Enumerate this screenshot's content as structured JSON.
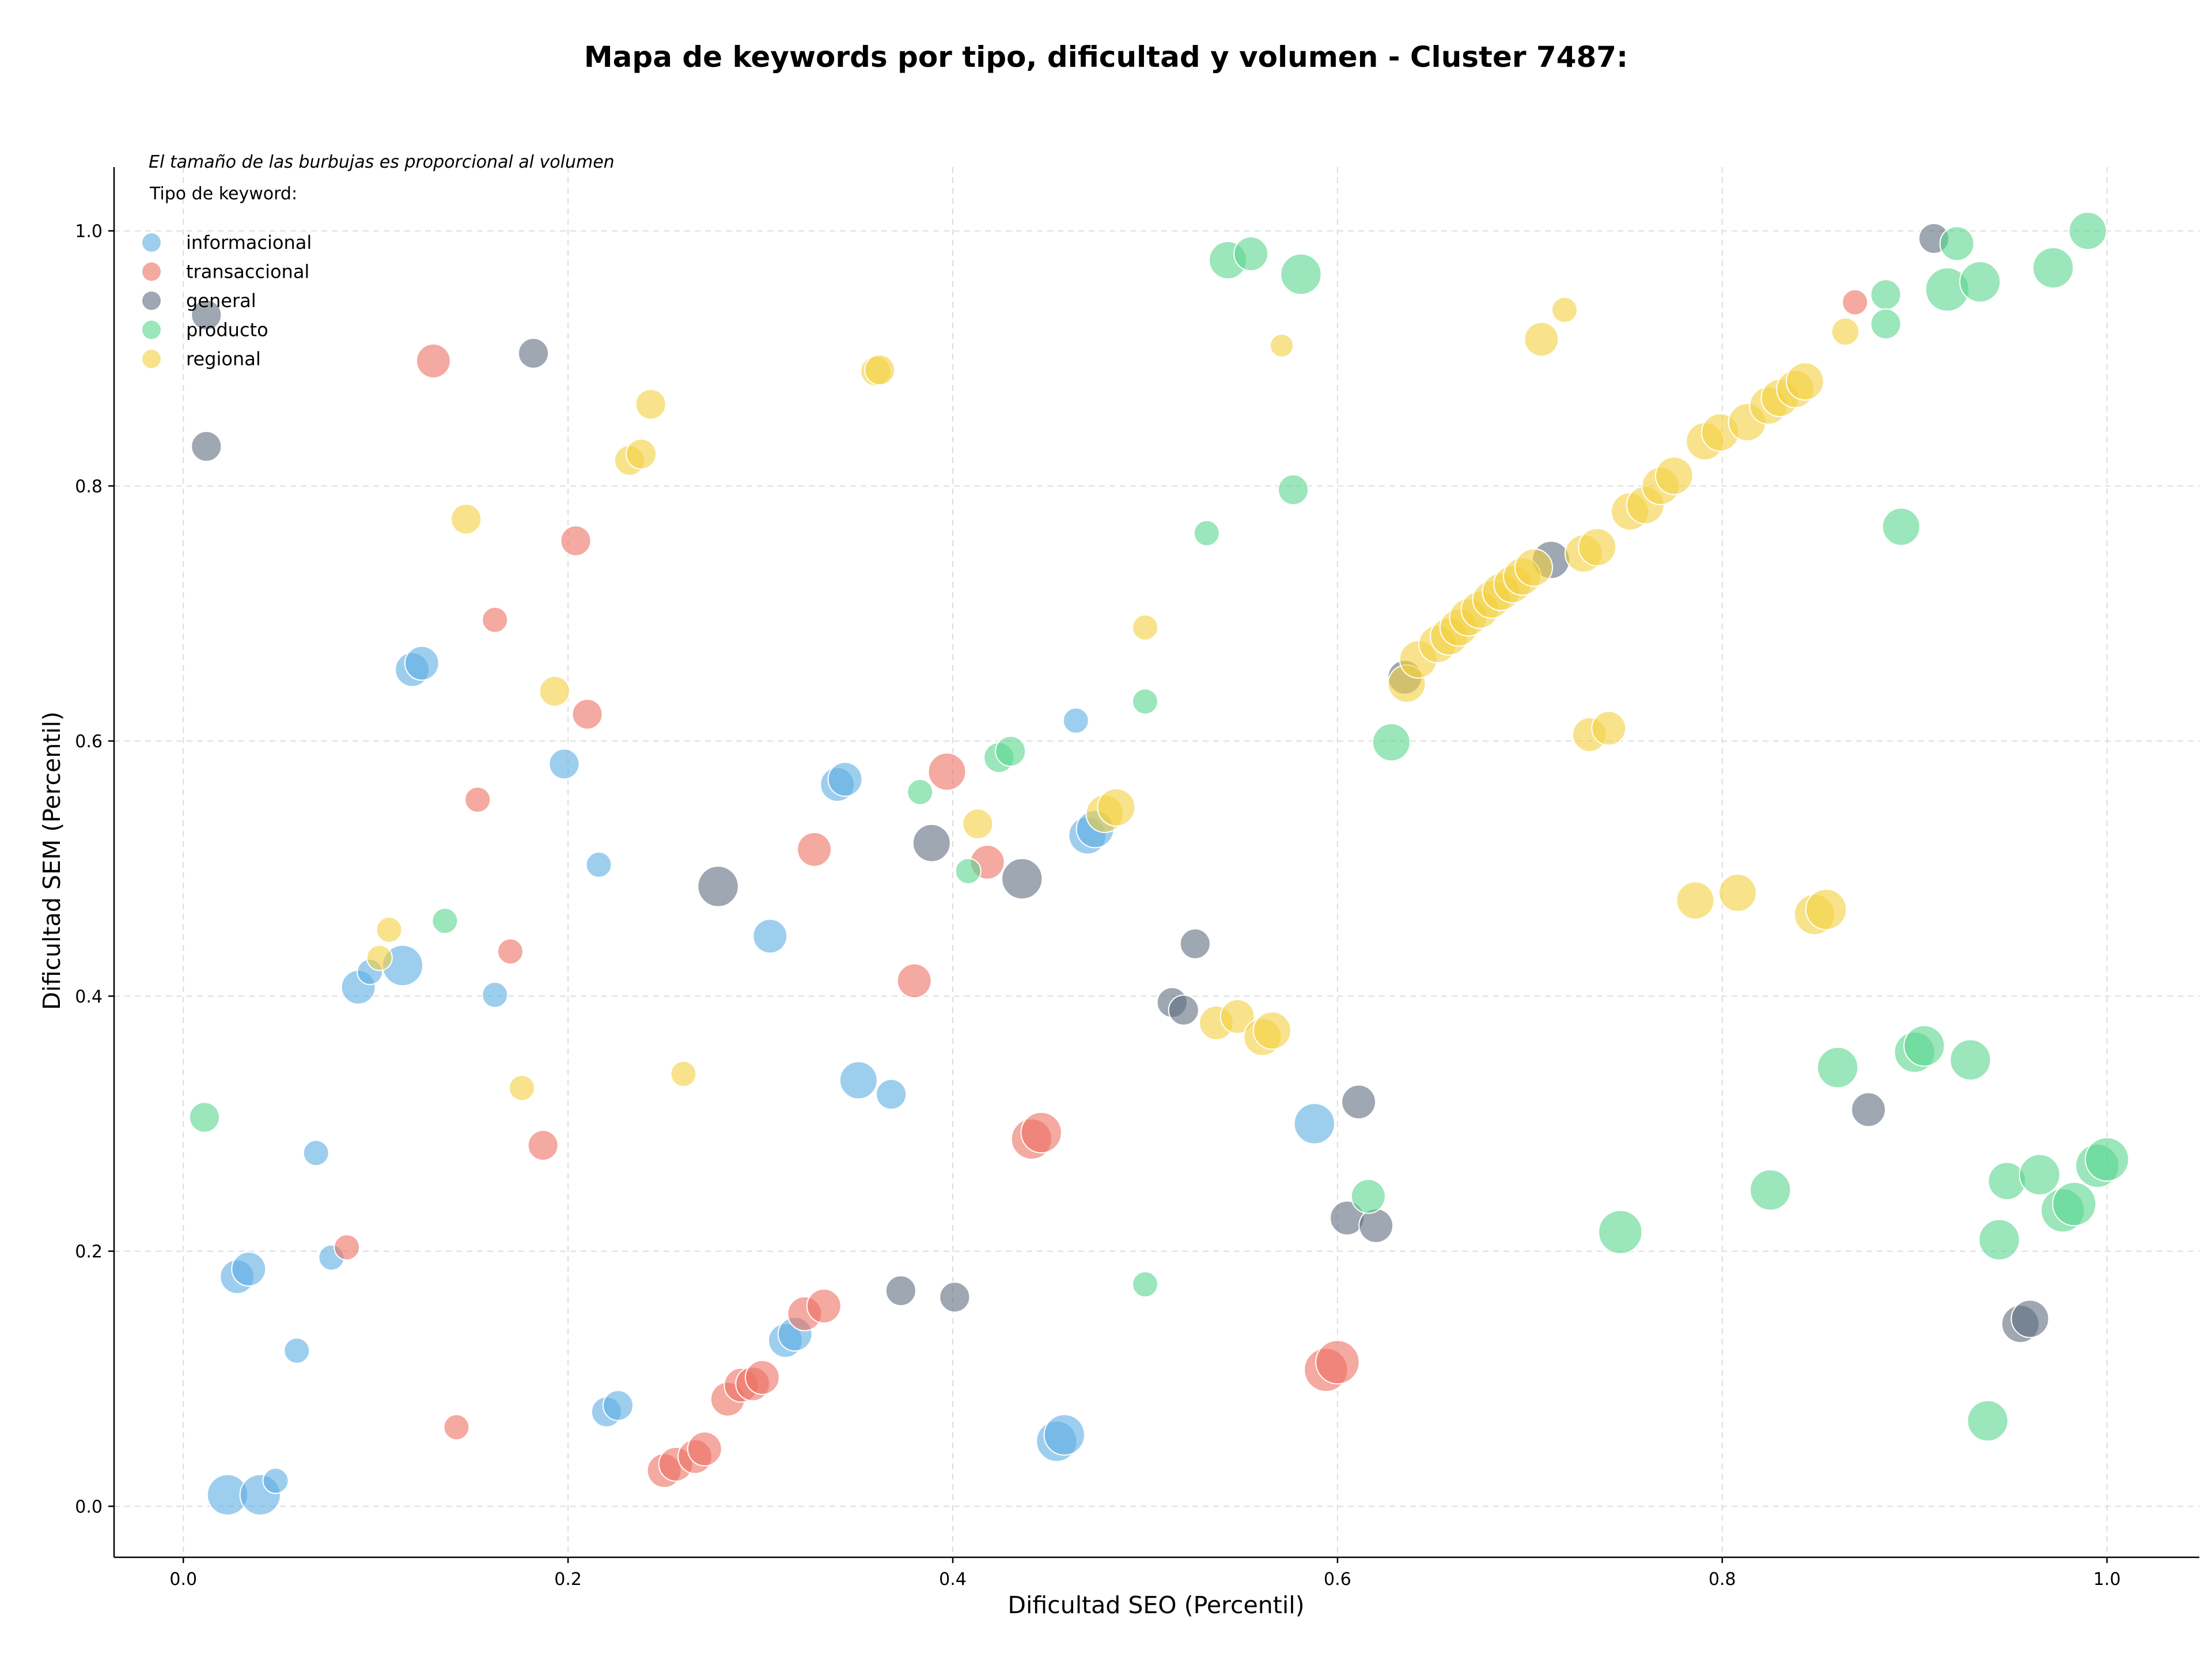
{
  "chart_data": {
    "type": "scatter",
    "title": "Mapa de keywords por tipo, dificultad y volumen - Cluster 7487:",
    "xlabel": "Dificultad SEO (Percentil)",
    "ylabel": "Dificultad SEM (Percentil)",
    "xlim": [
      -0.036,
      1.048
    ],
    "ylim": [
      -0.04,
      1.05
    ],
    "xticks": [
      "0.0",
      "0.2",
      "0.4",
      "0.6",
      "0.8",
      "1.0"
    ],
    "yticks": [
      "0.0",
      "0.2",
      "0.4",
      "0.6",
      "0.8",
      "1.0"
    ],
    "grid": true,
    "legend_position": "top-left",
    "annotation": "El tamaño de las burbujas es proporcional al volumen",
    "legend_title": "Tipo de keyword:",
    "series": [
      {
        "name": "informacional",
        "color": "#5DADE2",
        "points": [
          [
            0.023,
            0.009,
            3
          ],
          [
            0.04,
            0.009,
            3
          ],
          [
            0.048,
            0.02,
            1
          ],
          [
            0.028,
            0.18,
            2
          ],
          [
            0.034,
            0.186,
            2
          ],
          [
            0.059,
            0.122,
            1
          ],
          [
            0.069,
            0.277,
            1
          ],
          [
            0.077,
            0.195,
            1
          ],
          [
            0.091,
            0.407,
            2
          ],
          [
            0.097,
            0.419,
            1
          ],
          [
            0.114,
            0.424,
            3
          ],
          [
            0.119,
            0.656,
            2
          ],
          [
            0.124,
            0.661,
            2
          ],
          [
            0.162,
            0.401,
            1
          ],
          [
            0.198,
            0.582,
            1.5
          ],
          [
            0.216,
            0.503,
            1
          ],
          [
            0.22,
            0.074,
            1.5
          ],
          [
            0.226,
            0.079,
            1.5
          ],
          [
            0.305,
            0.447,
            2
          ],
          [
            0.313,
            0.13,
            2
          ],
          [
            0.318,
            0.135,
            2
          ],
          [
            0.34,
            0.566,
            2
          ],
          [
            0.344,
            0.57,
            2
          ],
          [
            0.351,
            0.334,
            2.5
          ],
          [
            0.368,
            0.323,
            1.5
          ],
          [
            0.454,
            0.051,
            3
          ],
          [
            0.458,
            0.056,
            3
          ],
          [
            0.464,
            0.616,
            1
          ],
          [
            0.47,
            0.526,
            2.5
          ],
          [
            0.474,
            0.531,
            2.5
          ],
          [
            0.588,
            0.3,
            3
          ]
        ]
      },
      {
        "name": "transaccional",
        "color": "#EC7063",
        "points": [
          [
            0.085,
            0.203,
            1
          ],
          [
            0.13,
            0.898,
            2
          ],
          [
            0.142,
            0.062,
            1
          ],
          [
            0.153,
            0.554,
            1
          ],
          [
            0.162,
            0.695,
            1
          ],
          [
            0.17,
            0.435,
            1
          ],
          [
            0.187,
            0.283,
            1.5
          ],
          [
            0.204,
            0.757,
            1.5
          ],
          [
            0.21,
            0.621,
            1.5
          ],
          [
            0.25,
            0.028,
            2
          ],
          [
            0.256,
            0.033,
            2
          ],
          [
            0.266,
            0.039,
            2
          ],
          [
            0.271,
            0.045,
            2
          ],
          [
            0.283,
            0.084,
            2
          ],
          [
            0.29,
            0.095,
            2
          ],
          [
            0.296,
            0.096,
            2
          ],
          [
            0.301,
            0.101,
            2
          ],
          [
            0.323,
            0.151,
            2
          ],
          [
            0.333,
            0.157,
            2
          ],
          [
            0.328,
            0.515,
            2
          ],
          [
            0.38,
            0.412,
            2
          ],
          [
            0.397,
            0.576,
            2.5
          ],
          [
            0.418,
            0.505,
            2
          ],
          [
            0.441,
            0.288,
            3
          ],
          [
            0.446,
            0.293,
            3
          ],
          [
            0.594,
            0.107,
            3.5
          ],
          [
            0.6,
            0.113,
            3.5
          ],
          [
            0.869,
            0.944,
            1
          ]
        ]
      },
      {
        "name": "general",
        "color": "#5D6D7E",
        "points": [
          [
            0.012,
            0.934,
            1.5
          ],
          [
            0.012,
            0.831,
            1.5
          ],
          [
            0.182,
            0.904,
            1.5
          ],
          [
            0.278,
            0.486,
            3
          ],
          [
            0.373,
            0.169,
            1.5
          ],
          [
            0.389,
            0.52,
            2.5
          ],
          [
            0.401,
            0.164,
            1.5
          ],
          [
            0.436,
            0.492,
            3
          ],
          [
            0.514,
            0.395,
            1.5
          ],
          [
            0.52,
            0.389,
            1.5
          ],
          [
            0.526,
            0.441,
            1.5
          ],
          [
            0.605,
            0.226,
            2
          ],
          [
            0.611,
            0.317,
            2
          ],
          [
            0.62,
            0.22,
            2
          ],
          [
            0.635,
            0.65,
            2
          ],
          [
            0.711,
            0.742,
            2.5
          ],
          [
            0.876,
            0.311,
            2
          ],
          [
            0.91,
            0.994,
            1.5
          ],
          [
            0.955,
            0.143,
            2.5
          ],
          [
            0.96,
            0.147,
            2.5
          ]
        ]
      },
      {
        "name": "producto",
        "color": "#58D68D",
        "points": [
          [
            0.011,
            0.305,
            1.5
          ],
          [
            0.136,
            0.459,
            1
          ],
          [
            0.383,
            0.56,
            1
          ],
          [
            0.408,
            0.498,
            1
          ],
          [
            0.424,
            0.587,
            1.5
          ],
          [
            0.43,
            0.592,
            1.5
          ],
          [
            0.5,
            0.174,
            1
          ],
          [
            0.5,
            0.631,
            1
          ],
          [
            0.532,
            0.763,
            1
          ],
          [
            0.543,
            0.977,
            2.5
          ],
          [
            0.555,
            0.982,
            2
          ],
          [
            0.577,
            0.797,
            1.5
          ],
          [
            0.581,
            0.966,
            3
          ],
          [
            0.616,
            0.243,
            2
          ],
          [
            0.628,
            0.599,
            2.5
          ],
          [
            0.747,
            0.215,
            3.5
          ],
          [
            0.825,
            0.248,
            3
          ],
          [
            0.86,
            0.344,
            3
          ],
          [
            0.885,
            0.95,
            1.5
          ],
          [
            0.885,
            0.927,
            1.5
          ],
          [
            0.893,
            0.768,
            2.5
          ],
          [
            0.9,
            0.356,
            3
          ],
          [
            0.905,
            0.361,
            3
          ],
          [
            0.917,
            0.954,
            3.5
          ],
          [
            0.922,
            0.99,
            2
          ],
          [
            0.929,
            0.35,
            3
          ],
          [
            0.934,
            0.96,
            3
          ],
          [
            0.938,
            0.067,
            3
          ],
          [
            0.944,
            0.209,
            3
          ],
          [
            0.948,
            0.255,
            2.5
          ],
          [
            0.965,
            0.26,
            3
          ],
          [
            0.972,
            0.971,
            3
          ],
          [
            0.977,
            0.232,
            3.5
          ],
          [
            0.983,
            0.237,
            3.5
          ],
          [
            0.99,
            1.0,
            2.5
          ],
          [
            0.995,
            0.267,
            3.5
          ],
          [
            1.0,
            0.272,
            3.5
          ]
        ]
      },
      {
        "name": "regional",
        "color": "#F4D03F",
        "points": [
          [
            0.107,
            0.452,
            1
          ],
          [
            0.102,
            0.43,
            1
          ],
          [
            0.147,
            0.774,
            1.5
          ],
          [
            0.176,
            0.328,
            1
          ],
          [
            0.193,
            0.639,
            1.5
          ],
          [
            0.232,
            0.82,
            1.5
          ],
          [
            0.238,
            0.825,
            1.5
          ],
          [
            0.243,
            0.864,
            1.5
          ],
          [
            0.26,
            0.339,
            1
          ],
          [
            0.36,
            0.89,
            1.5
          ],
          [
            0.362,
            0.891,
            1.5
          ],
          [
            0.413,
            0.535,
            1.5
          ],
          [
            0.479,
            0.543,
            2.5
          ],
          [
            0.485,
            0.548,
            2.5
          ],
          [
            0.5,
            0.689,
            1
          ],
          [
            0.537,
            0.379,
            2
          ],
          [
            0.548,
            0.384,
            2
          ],
          [
            0.561,
            0.368,
            2.5
          ],
          [
            0.566,
            0.373,
            2.5
          ],
          [
            0.571,
            0.91,
            0.8
          ],
          [
            0.636,
            0.645,
            2.5
          ],
          [
            0.642,
            0.664,
            2.5
          ],
          [
            0.652,
            0.676,
            2.5
          ],
          [
            0.658,
            0.682,
            2.5
          ],
          [
            0.663,
            0.689,
            2.5
          ],
          [
            0.668,
            0.697,
            2.5
          ],
          [
            0.674,
            0.703,
            2.5
          ],
          [
            0.68,
            0.711,
            2.5
          ],
          [
            0.685,
            0.717,
            2.5
          ],
          [
            0.691,
            0.723,
            2.5
          ],
          [
            0.696,
            0.729,
            2.5
          ],
          [
            0.702,
            0.736,
            2.5
          ],
          [
            0.706,
            0.915,
            2
          ],
          [
            0.718,
            0.938,
            1
          ],
          [
            0.728,
            0.747,
            2.5
          ],
          [
            0.735,
            0.752,
            2.5
          ],
          [
            0.731,
            0.605,
            2
          ],
          [
            0.741,
            0.61,
            2
          ],
          [
            0.752,
            0.78,
            2.5
          ],
          [
            0.76,
            0.785,
            2.5
          ],
          [
            0.768,
            0.8,
            2.5
          ],
          [
            0.775,
            0.808,
            2.5
          ],
          [
            0.786,
            0.475,
            2.5
          ],
          [
            0.791,
            0.835,
            2.5
          ],
          [
            0.799,
            0.842,
            2.5
          ],
          [
            0.808,
            0.481,
            2.5
          ],
          [
            0.813,
            0.85,
            2.5
          ],
          [
            0.824,
            0.863,
            2.5
          ],
          [
            0.83,
            0.869,
            2.5
          ],
          [
            0.838,
            0.876,
            2.5
          ],
          [
            0.843,
            0.882,
            2.5
          ],
          [
            0.848,
            0.464,
            3
          ],
          [
            0.854,
            0.468,
            3
          ],
          [
            0.864,
            0.921,
            1.2
          ]
        ]
      }
    ]
  }
}
